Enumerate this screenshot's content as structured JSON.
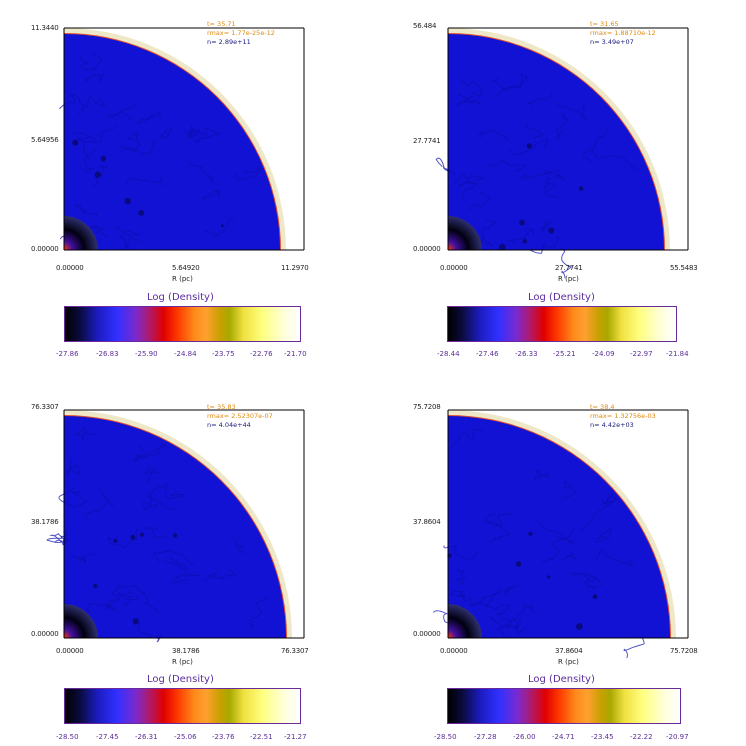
{
  "colors": {
    "interior": "#1212d4",
    "interior_dark": "#0d0db0",
    "shell": "#efe8c8",
    "edge_red": "#e14a2a",
    "info_orange": "#e08a10",
    "info_navy": "#1a1a80",
    "colorbar_text": "#5b2d9c"
  },
  "panels": [
    {
      "y_ticks": [
        "11.3440",
        "5.64956",
        "0.00000"
      ],
      "x_ticks": [
        "0.00000",
        "5.64920",
        "11.2970"
      ],
      "x_label": "R (pc)",
      "info": [
        "t=  35.71",
        "rmax= 1.77e-25e-12",
        "n= 2.89e+11"
      ],
      "colorbar_title": "Log (Density)",
      "colorbar_ticks": [
        "-27.86",
        "-26.83",
        "-25.90",
        "-24.84",
        "-23.75",
        "-22.76",
        "-21.70"
      ]
    },
    {
      "y_ticks": [
        "56.484",
        "27.7741",
        "0.00000"
      ],
      "x_ticks": [
        "0.00000",
        "27.7741",
        "55.5483"
      ],
      "x_label": "R (pc)",
      "info": [
        "t=  31.65",
        "rmax= 1.88710e-12",
        "n= 3.49e+07"
      ],
      "colorbar_title": "Log (Density)",
      "colorbar_ticks": [
        "-28.44",
        "-27.46",
        "-26.33",
        "-25.21",
        "-24.09",
        "-22.97",
        "-21.84"
      ]
    },
    {
      "y_ticks": [
        "76.3307",
        "38.1786",
        "0.00000"
      ],
      "x_ticks": [
        "0.00000",
        "38.1786",
        "76.3307"
      ],
      "x_label": "R (pc)",
      "info": [
        "t=  35.83",
        "rmax= 2.52307e-07",
        "n= 4.04e+44"
      ],
      "colorbar_title": "Log (Density)",
      "colorbar_ticks": [
        "-28.50",
        "-27.45",
        "-26.31",
        "-25.06",
        "-23.76",
        "-22.51",
        "-21.27"
      ]
    },
    {
      "y_ticks": [
        "75.7208",
        "37.8604",
        "0.00000"
      ],
      "x_ticks": [
        "0.00000",
        "37.8604",
        "75.7208"
      ],
      "x_label": "R (pc)",
      "info": [
        "t=  38.4",
        "rmax= 1.32756e-03",
        "n= 4.42e+03"
      ],
      "colorbar_title": "Log (Density)",
      "colorbar_ticks": [
        "-28.50",
        "-27.28",
        "-26.00",
        "-24.71",
        "-23.45",
        "-22.22",
        "-20.97"
      ]
    }
  ],
  "chart_data": [
    {
      "type": "heatmap",
      "title": "",
      "xlabel": "R (pc)",
      "ylabel": "",
      "xlim": [
        0,
        11.297
      ],
      "ylim": [
        0,
        11.344
      ],
      "colorbar_label": "Log (Density)",
      "colorbar_range": [
        -27.86,
        -21.7
      ],
      "annotations": [
        "t=  35.71",
        "rmax= 1.77e-25e-12",
        "n= 2.89e+11"
      ]
    },
    {
      "type": "heatmap",
      "title": "",
      "xlabel": "R (pc)",
      "ylabel": "",
      "xlim": [
        0,
        55.5483
      ],
      "ylim": [
        0,
        56.484
      ],
      "colorbar_label": "Log (Density)",
      "colorbar_range": [
        -28.44,
        -21.84
      ],
      "annotations": [
        "t=  31.65",
        "rmax= 1.88710e-12",
        "n= 3.49e+07"
      ]
    },
    {
      "type": "heatmap",
      "title": "",
      "xlabel": "R (pc)",
      "ylabel": "",
      "xlim": [
        0,
        76.3307
      ],
      "ylim": [
        0,
        76.3307
      ],
      "colorbar_label": "Log (Density)",
      "colorbar_range": [
        -28.5,
        -21.27
      ],
      "annotations": [
        "t=  35.83",
        "rmax= 2.52307e-07",
        "n= 4.04e+44"
      ]
    },
    {
      "type": "heatmap",
      "title": "",
      "xlabel": "R (pc)",
      "ylabel": "",
      "xlim": [
        0,
        75.7208
      ],
      "ylim": [
        0,
        75.7208
      ],
      "colorbar_label": "Log (Density)",
      "colorbar_range": [
        -28.5,
        -20.97
      ],
      "annotations": [
        "t=  38.4",
        "rmax= 1.32756e-03",
        "n= 4.42e+03"
      ]
    }
  ]
}
